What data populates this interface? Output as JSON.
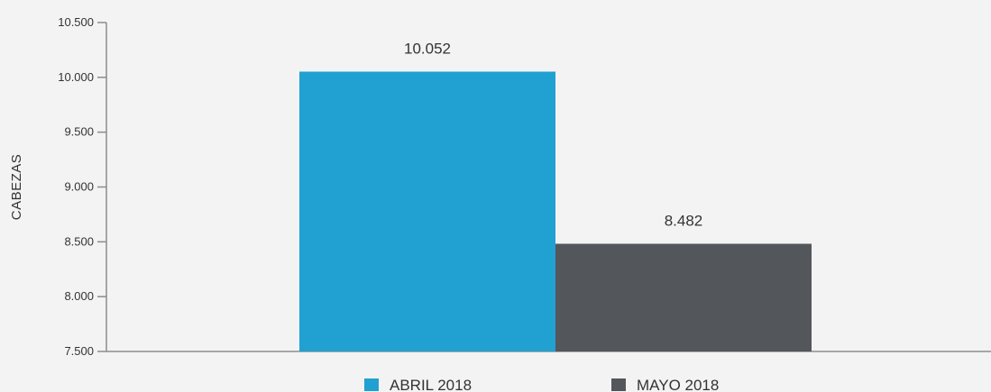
{
  "chart_data": {
    "type": "bar",
    "ylabel": "CABEZAS",
    "ylim": [
      7500,
      10500
    ],
    "yticks": [
      7500,
      8000,
      8500,
      9000,
      9500,
      10000,
      10500
    ],
    "ytick_labels": [
      "7.500",
      "8.000",
      "8.500",
      "9.000",
      "9.500",
      "10.000",
      "10.500"
    ],
    "series": [
      {
        "name": "ABRIL 2018",
        "value": 10052,
        "label": "10.052",
        "color": "#21a0d2"
      },
      {
        "name": "MAYO 2018",
        "value": 8482,
        "label": "8.482",
        "color": "#53565a"
      }
    ],
    "legend_position": "bottom",
    "grid": false
  }
}
